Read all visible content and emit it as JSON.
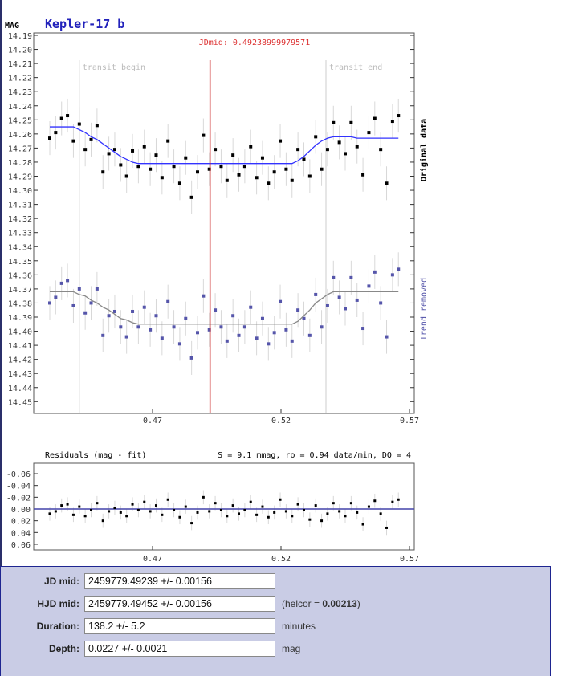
{
  "chart_data": [
    {
      "type": "scatter",
      "title": "Kepler-17 b",
      "ylabel": "MAG",
      "annotation_mid": "JDmid: 0.49238999979571",
      "jd_mid": 0.49239,
      "transit_begin": {
        "label": "transit begin",
        "x": 0.4415
      },
      "transit_end": {
        "label": "transit end",
        "x": 0.5375
      },
      "xlim": [
        0.424,
        0.572
      ],
      "ylim": [
        14.19,
        14.455
      ],
      "y_inverted": true,
      "x_ticks": [
        "0.47",
        "0.52",
        "0.57"
      ],
      "y_ticks": [
        "14.19",
        "14.20",
        "14.21",
        "14.22",
        "14.23",
        "14.24",
        "14.25",
        "14.26",
        "14.27",
        "14.28",
        "14.29",
        "14.30",
        "14.31",
        "14.32",
        "14.33",
        "14.34",
        "14.35",
        "14.36",
        "14.37",
        "14.38",
        "14.39",
        "14.40",
        "14.41",
        "14.42",
        "14.43",
        "14.44",
        "14.45"
      ],
      "colors": {
        "original": "#000000",
        "trend_removed": "#5555aa",
        "fit_original": "#3333ff",
        "fit_trend_removed": "#888888",
        "mid_line": "#cc2222",
        "transit_lines": "#cccccc",
        "error_bars": "#d8d8d8"
      },
      "x": [
        0.43,
        0.4323,
        0.4346,
        0.4369,
        0.4392,
        0.4415,
        0.4438,
        0.4461,
        0.4484,
        0.4507,
        0.453,
        0.4553,
        0.4576,
        0.4599,
        0.4622,
        0.4645,
        0.4668,
        0.4691,
        0.4714,
        0.4737,
        0.476,
        0.4783,
        0.4806,
        0.4829,
        0.4852,
        0.4875,
        0.4898,
        0.4921,
        0.4944,
        0.4967,
        0.499,
        0.5013,
        0.5036,
        0.5059,
        0.5082,
        0.5105,
        0.5128,
        0.5151,
        0.5174,
        0.5197,
        0.522,
        0.5243,
        0.5266,
        0.5289,
        0.5312,
        0.5335,
        0.5358,
        0.5381,
        0.5404,
        0.5427,
        0.545,
        0.5473,
        0.5496,
        0.5519,
        0.5542,
        0.5565,
        0.5588,
        0.5611,
        0.5634,
        0.5657
      ],
      "error": 0.012,
      "series": [
        {
          "name": "Original data",
          "values": [
            14.263,
            14.259,
            14.249,
            14.247,
            14.265,
            14.253,
            14.271,
            14.264,
            14.254,
            14.287,
            14.274,
            14.271,
            14.282,
            14.29,
            14.272,
            14.283,
            14.269,
            14.285,
            14.275,
            14.291,
            14.265,
            14.283,
            14.295,
            14.277,
            14.305,
            14.287,
            14.261,
            14.285,
            14.271,
            14.283,
            14.293,
            14.275,
            14.289,
            14.283,
            14.269,
            14.291,
            14.277,
            14.295,
            14.287,
            14.265,
            14.285,
            14.293,
            14.271,
            14.278,
            14.29,
            14.262,
            14.285,
            14.271,
            14.252,
            14.266,
            14.274,
            14.252,
            14.269,
            14.289,
            14.259,
            14.249,
            14.271,
            14.295,
            14.251,
            14.247
          ],
          "fit": [
            14.255,
            14.255,
            14.255,
            14.255,
            14.255,
            14.257,
            14.259,
            14.262,
            14.264,
            14.267,
            14.27,
            14.273,
            14.276,
            14.278,
            14.28,
            14.281,
            14.281,
            14.281,
            14.281,
            14.281,
            14.281,
            14.281,
            14.281,
            14.281,
            14.281,
            14.281,
            14.281,
            14.281,
            14.281,
            14.281,
            14.281,
            14.281,
            14.281,
            14.281,
            14.281,
            14.281,
            14.281,
            14.281,
            14.281,
            14.281,
            14.281,
            14.281,
            14.279,
            14.276,
            14.272,
            14.268,
            14.265,
            14.263,
            14.262,
            14.262,
            14.262,
            14.262,
            14.263,
            14.263,
            14.263,
            14.263,
            14.263,
            14.263,
            14.263,
            14.263
          ]
        },
        {
          "name": "Trend removed",
          "values": [
            14.38,
            14.376,
            14.366,
            14.364,
            14.382,
            14.37,
            14.387,
            14.38,
            14.37,
            14.403,
            14.389,
            14.386,
            14.397,
            14.404,
            14.386,
            14.397,
            14.383,
            14.399,
            14.389,
            14.405,
            14.379,
            14.397,
            14.409,
            14.391,
            14.419,
            14.401,
            14.375,
            14.399,
            14.385,
            14.397,
            14.407,
            14.389,
            14.403,
            14.397,
            14.383,
            14.405,
            14.391,
            14.409,
            14.401,
            14.379,
            14.399,
            14.407,
            14.385,
            14.391,
            14.403,
            14.374,
            14.397,
            14.382,
            14.362,
            14.376,
            14.384,
            14.362,
            14.378,
            14.398,
            14.368,
            14.358,
            14.38,
            14.404,
            14.36,
            14.356
          ],
          "fit": [
            14.372,
            14.372,
            14.372,
            14.372,
            14.372,
            14.374,
            14.375,
            14.378,
            14.38,
            14.383,
            14.385,
            14.388,
            14.391,
            14.392,
            14.394,
            14.395,
            14.395,
            14.395,
            14.395,
            14.395,
            14.395,
            14.395,
            14.395,
            14.395,
            14.395,
            14.395,
            14.395,
            14.395,
            14.395,
            14.395,
            14.395,
            14.395,
            14.395,
            14.395,
            14.395,
            14.395,
            14.395,
            14.395,
            14.395,
            14.395,
            14.395,
            14.395,
            14.393,
            14.389,
            14.385,
            14.38,
            14.377,
            14.374,
            14.372,
            14.372,
            14.372,
            14.372,
            14.372,
            14.372,
            14.372,
            14.372,
            14.372,
            14.372,
            14.372,
            14.372
          ]
        }
      ]
    },
    {
      "type": "scatter",
      "title": "Residuals (mag - fit)",
      "stats": "S = 9.1 mmag, ro = 0.94 data/min, DQ = 4",
      "xlim": [
        0.424,
        0.572
      ],
      "ylim": [
        -0.066,
        0.066
      ],
      "y_inverted": true,
      "x_ticks": [
        "0.47",
        "0.52",
        "0.57"
      ],
      "y_ticks": [
        "-0.06",
        "-0.04",
        "-0.02",
        "0.00",
        "0.02",
        "0.04",
        "0.06"
      ],
      "zero_line_color": "#4444aa",
      "values": [
        0.008,
        0.004,
        -0.006,
        -0.008,
        0.01,
        -0.004,
        0.012,
        0.002,
        -0.01,
        0.02,
        0.004,
        -0.002,
        0.006,
        0.012,
        -0.008,
        0.002,
        -0.012,
        0.004,
        -0.006,
        0.01,
        -0.016,
        0.002,
        0.014,
        -0.004,
        0.024,
        0.006,
        -0.02,
        0.004,
        -0.01,
        0.002,
        0.012,
        -0.006,
        0.008,
        0.002,
        -0.012,
        0.01,
        -0.004,
        0.014,
        0.006,
        -0.016,
        0.004,
        0.012,
        -0.008,
        0.002,
        0.018,
        -0.006,
        0.02,
        0.008,
        -0.01,
        0.004,
        0.012,
        -0.01,
        0.006,
        0.026,
        -0.004,
        -0.014,
        0.008,
        0.032,
        -0.012,
        -0.016
      ]
    }
  ],
  "form": {
    "jd_mid": {
      "label": "JD mid:",
      "value": "2459779.49239 +/- 0.00156"
    },
    "hjd_mid": {
      "label": "HJD mid:",
      "value": "2459779.49452 +/- 0.00156",
      "note_prefix": "(helcor = ",
      "note_value": "0.00213",
      "note_suffix": ")"
    },
    "duration": {
      "label": "Duration:",
      "value": "138.2 +/- 5.2",
      "unit": "minutes"
    },
    "depth": {
      "label": "Depth:",
      "value": "0.0227 +/- 0.0021",
      "unit": "mag"
    }
  }
}
